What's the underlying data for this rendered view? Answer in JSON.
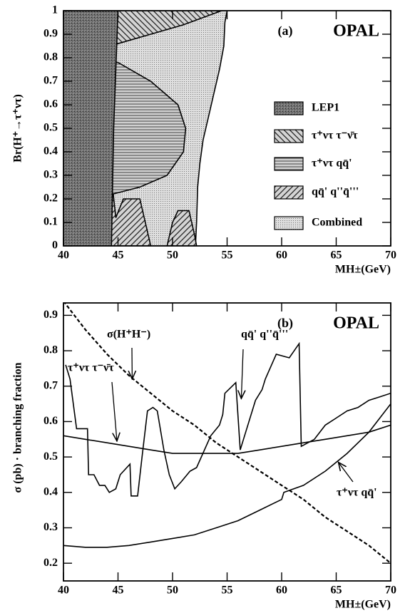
{
  "chart_data": [
    {
      "type": "area",
      "panel_label": "(a)",
      "experiment": "OPAL",
      "ylabel": "Br(H⁺→τ⁺ντ)",
      "xlabel": "MH±(GeV)",
      "xlim": [
        40,
        70
      ],
      "ylim": [
        0,
        1
      ],
      "xticks": [
        40,
        45,
        50,
        55,
        60,
        65,
        70
      ],
      "yticks": [
        0,
        0.1,
        0.2,
        0.3,
        0.4,
        0.5,
        0.6,
        0.7,
        0.8,
        0.9,
        1
      ],
      "legend": "right",
      "series": [
        {
          "name": "LEP1",
          "pattern": "dense",
          "x": [
            40,
            44.4,
            44.6,
            45.0,
            40
          ],
          "values": [
            0,
            0,
            0.5,
            1,
            1
          ]
        },
        {
          "name": "τ⁺ντ τ⁻ν̄τ",
          "pattern": "backslash",
          "x": [
            40,
            42,
            45,
            48,
            51,
            54.5,
            40
          ],
          "values": [
            0.78,
            0.82,
            0.86,
            0.9,
            0.94,
            1,
            1
          ]
        },
        {
          "name": "τ⁺ντ qq̄'",
          "pattern": "horizontal",
          "x": [
            40,
            42,
            45,
            48,
            50.5,
            51.2,
            51,
            49.5,
            47,
            44.5,
            42,
            40
          ],
          "values": [
            0.78,
            0.8,
            0.78,
            0.7,
            0.6,
            0.5,
            0.4,
            0.3,
            0.25,
            0.22,
            0.2,
            0.2
          ]
        },
        {
          "name": "qq̄' q''q̄'''",
          "pattern": "slash",
          "x": [
            40,
            40,
            41,
            41.5,
            42,
            42.3,
            44.5,
            44.8,
            45.5,
            47,
            47.5,
            48,
            null,
            49.5,
            50,
            50.5,
            51.5,
            52,
            52.2
          ],
          "values": [
            0,
            0.08,
            0.08,
            0.15,
            0.15,
            0.25,
            0.25,
            0.12,
            0.2,
            0.2,
            0.1,
            0,
            null,
            0,
            0.1,
            0.15,
            0.15,
            0.05,
            0
          ]
        },
        {
          "name": "Combined",
          "pattern": "dots",
          "x": [
            40,
            40,
            55,
            54.8,
            54.7,
            54.3,
            53.8,
            53.3,
            52.8,
            52.5,
            52.3,
            52.2,
            52.1
          ],
          "values": [
            0,
            1,
            1,
            0.95,
            0.85,
            0.75,
            0.65,
            0.55,
            0.45,
            0.35,
            0.25,
            0.1,
            0
          ]
        }
      ]
    },
    {
      "type": "line",
      "panel_label": "(b)",
      "experiment": "OPAL",
      "ylabel": "σ (pb) · branching fraction",
      "xlabel": "MH±(GeV)",
      "xlim": [
        40,
        70
      ],
      "ylim": [
        0.15,
        0.935
      ],
      "xticks": [
        40,
        45,
        50,
        55,
        60,
        65,
        70
      ],
      "yticks": [
        0.2,
        0.3,
        0.4,
        0.5,
        0.6,
        0.7,
        0.8,
        0.9
      ],
      "series": [
        {
          "name": "σ(H⁺H⁻)",
          "dash": true,
          "x": [
            40,
            42,
            44,
            46,
            48,
            50,
            52,
            54,
            56,
            58,
            60,
            62,
            64,
            66,
            68,
            70
          ],
          "values": [
            0.94,
            0.86,
            0.79,
            0.73,
            0.68,
            0.63,
            0.59,
            0.54,
            0.5,
            0.46,
            0.42,
            0.38,
            0.33,
            0.29,
            0.25,
            0.2
          ]
        },
        {
          "name": "qq̄' q''q̄'''",
          "dash": false,
          "x": [
            40.2,
            40.6,
            41.2,
            41.6,
            42.2,
            42.3,
            42.8,
            43.3,
            43.8,
            44.2,
            44.8,
            45.2,
            46.1,
            46.2,
            46.8,
            47.2,
            47.7,
            48.2,
            48.6,
            49.2,
            49.7,
            50.2,
            50.8,
            51.6,
            52.2,
            53.5,
            54.3,
            54.6,
            54.8,
            55.8,
            56.2,
            57.6,
            58.2,
            58.5,
            59.5,
            60.7,
            61.6,
            61.8,
            63,
            64,
            65,
            66,
            67,
            68,
            69,
            70
          ],
          "values": [
            0.76,
            0.72,
            0.58,
            0.58,
            0.58,
            0.45,
            0.45,
            0.42,
            0.42,
            0.4,
            0.41,
            0.45,
            0.48,
            0.39,
            0.39,
            0.5,
            0.63,
            0.64,
            0.63,
            0.52,
            0.45,
            0.41,
            0.43,
            0.46,
            0.47,
            0.56,
            0.59,
            0.62,
            0.68,
            0.71,
            0.52,
            0.66,
            0.69,
            0.72,
            0.79,
            0.78,
            0.82,
            0.53,
            0.55,
            0.59,
            0.61,
            0.63,
            0.64,
            0.66,
            0.67,
            0.68
          ]
        },
        {
          "name": "τ⁺ντ τ⁻ν̄τ",
          "dash": false,
          "x": [
            40,
            42,
            44,
            46,
            48,
            50,
            52,
            54,
            56,
            58,
            60,
            62,
            64,
            66,
            68,
            70
          ],
          "values": [
            0.56,
            0.55,
            0.54,
            0.53,
            0.52,
            0.51,
            0.51,
            0.51,
            0.51,
            0.52,
            0.53,
            0.54,
            0.55,
            0.56,
            0.57,
            0.59
          ]
        },
        {
          "name": "τ⁺ντ qq̄'",
          "dash": false,
          "x": [
            40,
            42,
            44,
            46,
            48,
            50,
            52,
            54,
            56,
            58,
            60,
            60.2,
            62,
            64,
            66,
            68,
            70
          ],
          "values": [
            0.25,
            0.245,
            0.245,
            0.25,
            0.26,
            0.27,
            0.28,
            0.3,
            0.32,
            0.35,
            0.38,
            0.4,
            0.42,
            0.46,
            0.51,
            0.57,
            0.65
          ]
        }
      ]
    }
  ]
}
